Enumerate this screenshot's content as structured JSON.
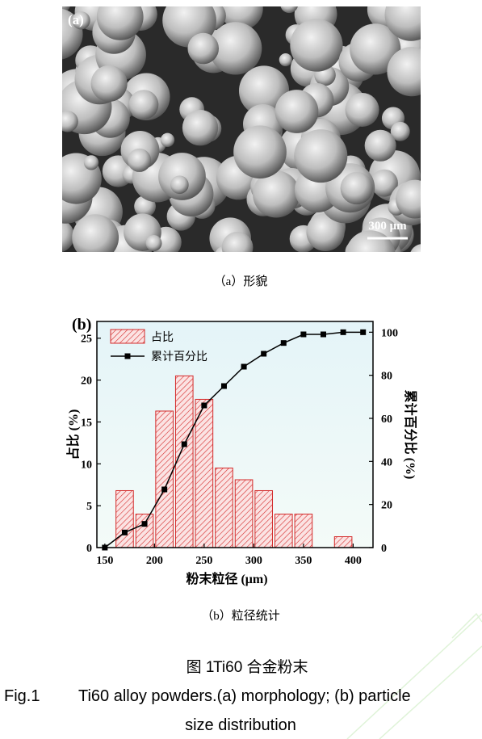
{
  "image_a": {
    "panel_label": "(a)",
    "scale_bar": "300 μm"
  },
  "caption_a": "（a）形貌",
  "chart_data": {
    "type": "histogram",
    "panel_label": "(b)",
    "x_label": "粉末粒径 (μm)",
    "y_label": "占比 (%)",
    "y2_label": "累计百分比 (%)",
    "bins": [
      160,
      180,
      200,
      220,
      240,
      260,
      280,
      300,
      320,
      340,
      360,
      380,
      400
    ],
    "series": [
      {
        "name": "占比",
        "type": "histogram",
        "color": "#d42a2a",
        "values": [
          6.8,
          4.0,
          16.3,
          20.5,
          17.7,
          9.5,
          8.1,
          6.8,
          4.0,
          4.0,
          0,
          1.3
        ]
      },
      {
        "name": "累计百分比",
        "type": "line",
        "axis": "y2",
        "color": "#000000",
        "x": [
          150,
          170,
          190,
          210,
          230,
          250,
          270,
          290,
          310,
          330,
          350,
          370,
          390,
          410
        ],
        "values": [
          0,
          7,
          11,
          27,
          48,
          66,
          75,
          84,
          90,
          95,
          99,
          99,
          100,
          100
        ]
      }
    ],
    "xlim": [
      142,
      420
    ],
    "xticks": [
      150,
      200,
      250,
      300,
      350,
      400
    ],
    "ylim": [
      0,
      27
    ],
    "yticks": [
      0,
      5,
      10,
      15,
      20,
      25
    ],
    "y2lim": [
      0,
      105
    ],
    "y2ticks": [
      0,
      20,
      40,
      60,
      80,
      100
    ],
    "legend": "upper-left"
  },
  "caption_b": "（b）粒径统计",
  "figure_cn": {
    "label": "图 1",
    "title": "Ti60 合金粉末"
  },
  "figure_en": {
    "label": "Fig.1",
    "lines": [
      "Ti60 alloy powders.(a) morphology; (b) particle",
      "size distribution"
    ]
  }
}
